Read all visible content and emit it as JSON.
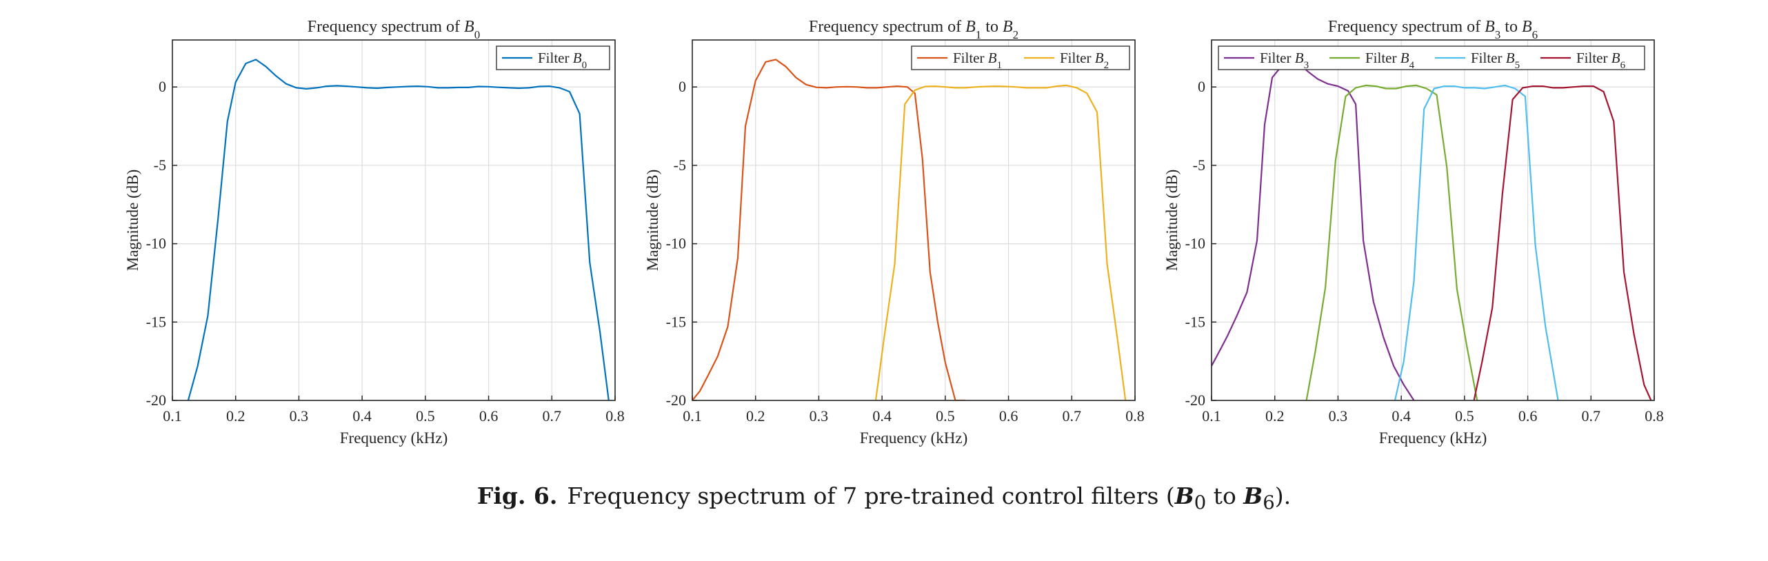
{
  "figure": {
    "caption_label": "Fig. 6.",
    "caption_pre": "Frequency spectrum of 7 pre-trained control filters (",
    "caption_var_start": "B",
    "caption_sub_start": "0",
    "caption_mid": " to ",
    "caption_var_end": "B",
    "caption_sub_end": "6",
    "caption_post": ")."
  },
  "colors": {
    "B0": "#0072BD",
    "B1": "#D95319",
    "B2": "#EDB120",
    "B3": "#7E2F8E",
    "B4": "#77AC30",
    "B5": "#4DBEEE",
    "B6": "#A2142F"
  },
  "chart_data": [
    {
      "type": "line",
      "title": "Frequency spectrum of B0",
      "title_parts": [
        {
          "t": "Frequency spectrum of "
        },
        {
          "t": "B",
          "i": true
        },
        {
          "t": "0",
          "sub": true
        }
      ],
      "xlabel": "Frequency (kHz)",
      "ylabel": "Magnitude (dB)",
      "xlim": [
        0.1,
        0.8
      ],
      "ylim": [
        -20,
        3
      ],
      "xticks": [
        "0.1",
        "0.2",
        "0.3",
        "0.4",
        "0.5",
        "0.6",
        "0.7",
        "0.8"
      ],
      "yticks": [
        "0",
        "-5",
        "-10",
        "-15",
        "-20"
      ],
      "grid": true,
      "legend": "top-right",
      "series": [
        {
          "key": "B0",
          "name": "Filter B0",
          "legend_parts": [
            {
              "t": "Filter "
            },
            {
              "t": "B",
              "i": true
            },
            {
              "t": "0",
              "sub": true
            }
          ],
          "x": [
            0.125,
            0.14,
            0.156,
            0.172,
            0.187,
            0.2,
            0.216,
            0.232,
            0.248,
            0.264,
            0.28,
            0.296,
            0.312,
            0.328,
            0.344,
            0.36,
            0.376,
            0.392,
            0.408,
            0.424,
            0.44,
            0.456,
            0.472,
            0.488,
            0.504,
            0.52,
            0.536,
            0.552,
            0.568,
            0.584,
            0.6,
            0.616,
            0.632,
            0.648,
            0.664,
            0.68,
            0.696,
            0.712,
            0.728,
            0.744,
            0.76,
            0.776,
            0.79
          ],
          "y": [
            -20,
            -17.8,
            -14.6,
            -8.5,
            -2.2,
            0.3,
            1.5,
            1.75,
            1.3,
            0.7,
            0.2,
            -0.05,
            -0.12,
            -0.05,
            0.05,
            0.08,
            0.05,
            0.0,
            -0.05,
            -0.08,
            -0.03,
            0.0,
            0.03,
            0.05,
            0.02,
            -0.05,
            -0.05,
            -0.03,
            -0.03,
            0.03,
            0.02,
            -0.02,
            -0.05,
            -0.08,
            -0.05,
            0.03,
            0.05,
            -0.05,
            -0.3,
            -1.7,
            -11.2,
            -15.6,
            -20
          ]
        }
      ]
    },
    {
      "type": "line",
      "title": "Frequency spectrum of B1 to B2",
      "title_parts": [
        {
          "t": "Frequency spectrum of "
        },
        {
          "t": "B",
          "i": true
        },
        {
          "t": "1",
          "sub": true
        },
        {
          "t": " to "
        },
        {
          "t": "B",
          "i": true
        },
        {
          "t": "2",
          "sub": true
        }
      ],
      "xlabel": "Frequency (kHz)",
      "ylabel": "Magnitude (dB)",
      "xlim": [
        0.1,
        0.8
      ],
      "ylim": [
        -20,
        3
      ],
      "xticks": [
        "0.1",
        "0.2",
        "0.3",
        "0.4",
        "0.5",
        "0.6",
        "0.7",
        "0.8"
      ],
      "yticks": [
        "0",
        "-5",
        "-10",
        "-15",
        "-20"
      ],
      "grid": true,
      "legend": "top-right",
      "series": [
        {
          "key": "B1",
          "name": "Filter B1",
          "legend_parts": [
            {
              "t": "Filter "
            },
            {
              "t": "B",
              "i": true
            },
            {
              "t": "1",
              "sub": true
            }
          ],
          "x": [
            0.1,
            0.112,
            0.125,
            0.14,
            0.156,
            0.172,
            0.184,
            0.2,
            0.216,
            0.232,
            0.248,
            0.264,
            0.28,
            0.296,
            0.312,
            0.328,
            0.344,
            0.36,
            0.376,
            0.392,
            0.408,
            0.424,
            0.44,
            0.452,
            0.464,
            0.476,
            0.488,
            0.5,
            0.516,
            0.532
          ],
          "y": [
            -20,
            -19.4,
            -18.4,
            -17.2,
            -15.3,
            -10.9,
            -2.5,
            0.4,
            1.6,
            1.75,
            1.3,
            0.6,
            0.15,
            -0.02,
            -0.05,
            0.0,
            0.02,
            0.0,
            -0.05,
            -0.05,
            0.0,
            0.05,
            0.0,
            -0.4,
            -4.6,
            -11.8,
            -15.0,
            -17.6,
            -20,
            -20
          ]
        },
        {
          "key": "B2",
          "name": "Filter B2",
          "legend_parts": [
            {
              "t": "Filter "
            },
            {
              "t": "B",
              "i": true
            },
            {
              "t": "2",
              "sub": true
            }
          ],
          "x": [
            0.39,
            0.404,
            0.42,
            0.436,
            0.452,
            0.468,
            0.484,
            0.5,
            0.516,
            0.532,
            0.548,
            0.564,
            0.58,
            0.596,
            0.612,
            0.628,
            0.644,
            0.66,
            0.676,
            0.692,
            0.708,
            0.724,
            0.74,
            0.756,
            0.772,
            0.785
          ],
          "y": [
            -20,
            -15.8,
            -11.3,
            -1.1,
            -0.2,
            0.03,
            0.05,
            0.0,
            -0.05,
            -0.05,
            0.0,
            0.03,
            0.05,
            0.03,
            0.0,
            -0.05,
            -0.05,
            -0.05,
            0.05,
            0.1,
            -0.05,
            -0.4,
            -1.6,
            -11.3,
            -16.0,
            -20
          ]
        }
      ]
    },
    {
      "type": "line",
      "title": "Frequency spectrum of B3 to B6",
      "title_parts": [
        {
          "t": "Frequency spectrum of "
        },
        {
          "t": "B",
          "i": true
        },
        {
          "t": "3",
          "sub": true
        },
        {
          "t": " to "
        },
        {
          "t": "B",
          "i": true
        },
        {
          "t": "6",
          "sub": true
        }
      ],
      "xlabel": "Frequency (kHz)",
      "ylabel": "Magnitude (dB)",
      "xlim": [
        0.1,
        0.8
      ],
      "ylim": [
        -20,
        3
      ],
      "xticks": [
        "0.1",
        "0.2",
        "0.3",
        "0.4",
        "0.5",
        "0.6",
        "0.7",
        "0.8"
      ],
      "yticks": [
        "0",
        "-5",
        "-10",
        "-15",
        "-20"
      ],
      "grid": true,
      "legend": "top",
      "series": [
        {
          "key": "B3",
          "name": "Filter B3",
          "legend_parts": [
            {
              "t": "Filter "
            },
            {
              "t": "B",
              "i": true
            },
            {
              "t": "3",
              "sub": true
            }
          ],
          "x": [
            0.1,
            0.112,
            0.125,
            0.14,
            0.156,
            0.172,
            0.184,
            0.196,
            0.208,
            0.22,
            0.236,
            0.252,
            0.268,
            0.284,
            0.3,
            0.316,
            0.328,
            0.34,
            0.356,
            0.372,
            0.388,
            0.404,
            0.42
          ],
          "y": [
            -17.8,
            -16.9,
            -15.9,
            -14.6,
            -13.1,
            -9.8,
            -2.4,
            0.6,
            1.2,
            1.6,
            1.6,
            1.0,
            0.5,
            0.2,
            0.05,
            -0.25,
            -1.1,
            -9.8,
            -13.7,
            -16.0,
            -17.8,
            -19.0,
            -20
          ]
        },
        {
          "key": "B4",
          "name": "Filter B4",
          "legend_parts": [
            {
              "t": "Filter "
            },
            {
              "t": "B",
              "i": true
            },
            {
              "t": "4",
              "sub": true
            }
          ],
          "x": [
            0.25,
            0.264,
            0.28,
            0.296,
            0.312,
            0.328,
            0.344,
            0.36,
            0.376,
            0.392,
            0.408,
            0.424,
            0.44,
            0.456,
            0.472,
            0.488,
            0.504,
            0.52
          ],
          "y": [
            -20,
            -16.9,
            -12.8,
            -4.7,
            -0.6,
            -0.05,
            0.1,
            0.05,
            -0.1,
            -0.1,
            0.05,
            0.1,
            -0.1,
            -0.5,
            -5.1,
            -12.9,
            -16.6,
            -20
          ]
        },
        {
          "key": "B5",
          "name": "Filter B5",
          "legend_parts": [
            {
              "t": "Filter "
            },
            {
              "t": "B",
              "i": true
            },
            {
              "t": "5",
              "sub": true
            }
          ],
          "x": [
            0.39,
            0.404,
            0.42,
            0.436,
            0.452,
            0.468,
            0.484,
            0.5,
            0.516,
            0.532,
            0.548,
            0.564,
            0.58,
            0.596,
            0.612,
            0.628,
            0.648
          ],
          "y": [
            -20,
            -17.5,
            -12.4,
            -1.4,
            -0.1,
            0.05,
            0.05,
            -0.05,
            -0.05,
            -0.1,
            0.0,
            0.1,
            -0.1,
            -0.6,
            -10.1,
            -15.3,
            -20
          ]
        },
        {
          "key": "B6",
          "name": "Filter B6",
          "legend_parts": [
            {
              "t": "Filter "
            },
            {
              "t": "B",
              "i": true
            },
            {
              "t": "6",
              "sub": true
            }
          ],
          "x": [
            0.515,
            0.528,
            0.544,
            0.56,
            0.576,
            0.592,
            0.608,
            0.624,
            0.64,
            0.656,
            0.672,
            0.688,
            0.704,
            0.72,
            0.736,
            0.752,
            0.768,
            0.784,
            0.795
          ],
          "y": [
            -20,
            -17.5,
            -14.1,
            -6.8,
            -0.8,
            -0.05,
            0.05,
            0.05,
            -0.05,
            -0.05,
            0.0,
            0.05,
            0.05,
            -0.3,
            -2.2,
            -11.8,
            -15.8,
            -19.0,
            -20
          ]
        }
      ]
    }
  ]
}
